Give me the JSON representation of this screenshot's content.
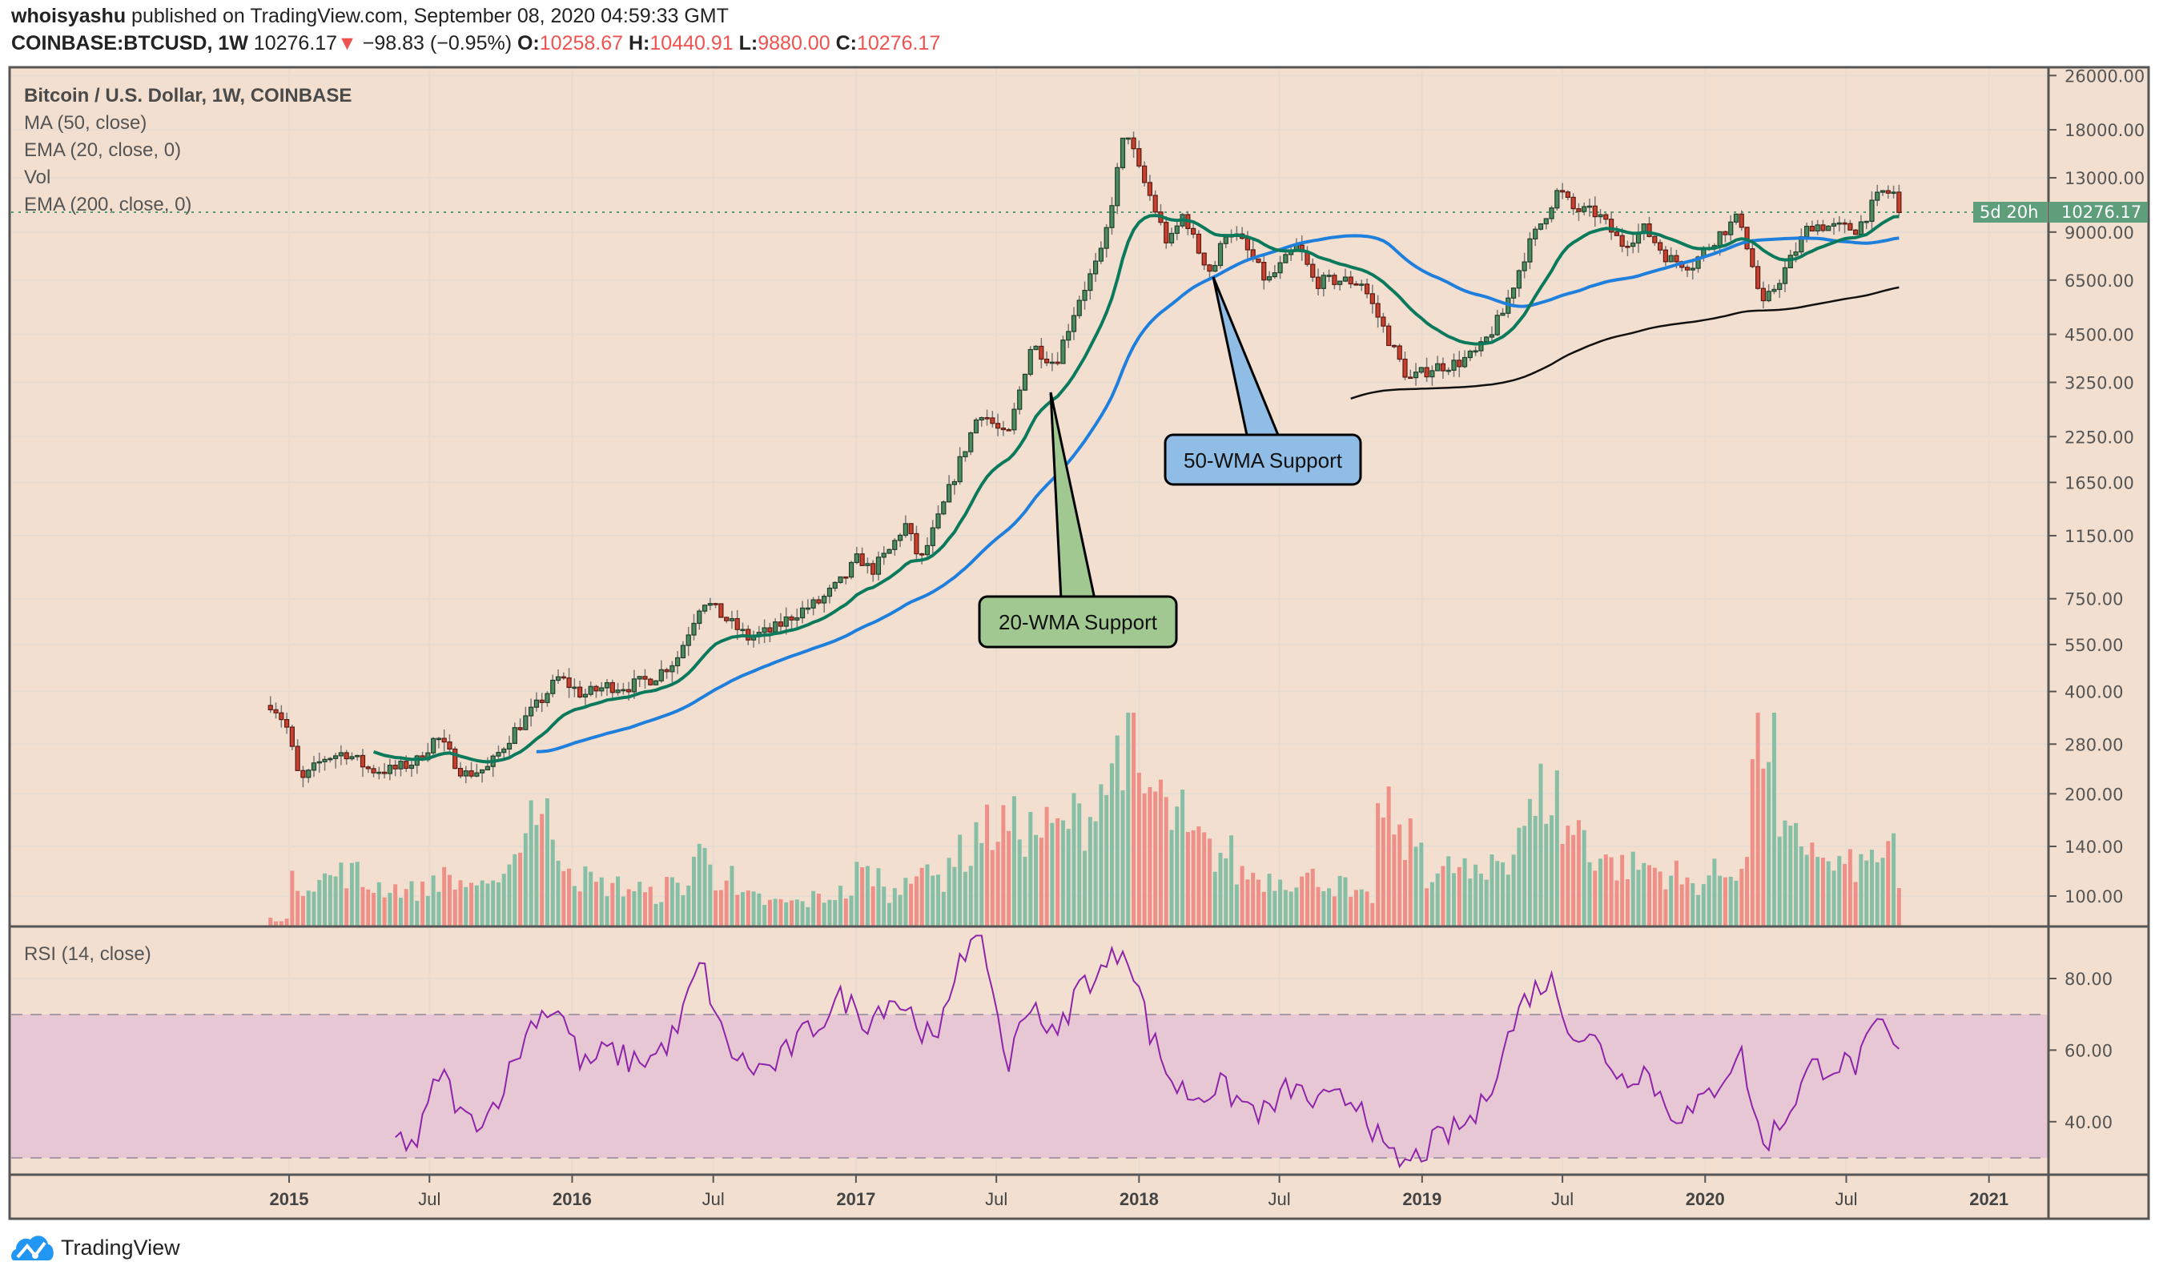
{
  "header": {
    "author": "whoisyashu",
    "published": "published on TradingView.com, September 08, 2020 04:59:33 GMT",
    "symbol": "COINBASE:BTCUSD, 1W",
    "last": "10276.17",
    "direction_icon": "down-triangle",
    "change": "−98.83 (−0.95%)",
    "o_label": "O:",
    "o": "10258.67",
    "h_label": "H:",
    "h": "10440.91",
    "l_label": "L:",
    "l": "9880.00",
    "c_label": "C:",
    "c": "10276.17"
  },
  "legend": {
    "title": "Bitcoin / U.S. Dollar, 1W, COINBASE",
    "ma50": "MA (50, close)",
    "ema20": "EMA (20, close, 0)",
    "vol": "Vol",
    "ema200": "EMA (200, close, 0)",
    "rsi": "RSI (14, close)"
  },
  "annotations": {
    "wma50": "50-WMA Support",
    "wma20": "20-WMA Support"
  },
  "price_label": {
    "value": "10276.17",
    "countdown": "5d 20h"
  },
  "footer": {
    "brand": "TradingView"
  },
  "colors": {
    "background": "#f2dfcf",
    "up": "#4c8a60",
    "down": "#c8402e",
    "ema20": "#0b7a5c",
    "ma50": "#1f7fdc",
    "ema200": "#111111",
    "rsi": "#8e24aa",
    "rsi_band": "#e6c7d3",
    "vol_up": "#86bfa5",
    "vol_down": "#ee9088",
    "wma50_box": "#8fbde6",
    "wma20_box": "#a0c890"
  },
  "chart_data": {
    "type": "candlestick",
    "interval": "1W",
    "y_scale": "log",
    "grid": true,
    "price_ticks": [
      "26000.00",
      "18000.00",
      "13000.00",
      "9000.00",
      "6500.00",
      "4500.00",
      "3250.00",
      "2250.00",
      "1650.00",
      "1150.00",
      "750.00",
      "550.00",
      "400.00",
      "280.00",
      "200.00",
      "140.00",
      "100.00"
    ],
    "time_ticks": [
      "2015",
      "Jul",
      "2016",
      "Jul",
      "2017",
      "Jul",
      "2018",
      "Jul",
      "2019",
      "Jul",
      "2020",
      "Jul",
      "2021"
    ],
    "rsi_ticks": [
      "80.00",
      "60.00",
      "40.00"
    ],
    "rsi_bands": [
      70,
      30
    ],
    "close_anchors": [
      [
        "2014-12-10",
        370
      ],
      [
        "2014-12-28",
        320
      ],
      [
        "2015-01-15",
        215
      ],
      [
        "2015-02-15",
        255
      ],
      [
        "2015-03-15",
        265
      ],
      [
        "2015-04-15",
        235
      ],
      [
        "2015-05-15",
        235
      ],
      [
        "2015-06-15",
        250
      ],
      [
        "2015-07-10",
        295
      ],
      [
        "2015-08-15",
        228
      ],
      [
        "2015-09-15",
        238
      ],
      [
        "2015-10-15",
        300
      ],
      [
        "2015-11-15",
        360
      ],
      [
        "2015-12-15",
        440
      ],
      [
        "2016-01-15",
        390
      ],
      [
        "2016-02-15",
        415
      ],
      [
        "2016-03-15",
        415
      ],
      [
        "2016-04-15",
        440
      ],
      [
        "2016-05-15",
        500
      ],
      [
        "2016-06-17",
        750
      ],
      [
        "2016-07-15",
        660
      ],
      [
        "2016-08-15",
        575
      ],
      [
        "2016-09-15",
        605
      ],
      [
        "2016-10-15",
        680
      ],
      [
        "2016-11-15",
        735
      ],
      [
        "2016-12-15",
        850
      ],
      [
        "2017-01-05",
        1000
      ],
      [
        "2017-01-20",
        900
      ],
      [
        "2017-02-15",
        1050
      ],
      [
        "2017-03-05",
        1250
      ],
      [
        "2017-03-25",
        960
      ],
      [
        "2017-04-15",
        1250
      ],
      [
        "2017-05-15",
        1900
      ],
      [
        "2017-06-10",
        2700
      ],
      [
        "2017-07-15",
        2200
      ],
      [
        "2017-08-15",
        4200
      ],
      [
        "2017-09-15",
        3700
      ],
      [
        "2017-10-15",
        5700
      ],
      [
        "2017-11-15",
        7900
      ],
      [
        "2017-12-15",
        18500
      ],
      [
        "2017-12-31",
        13800
      ],
      [
        "2018-01-15",
        11500
      ],
      [
        "2018-02-08",
        8200
      ],
      [
        "2018-02-28",
        10300
      ],
      [
        "2018-03-15",
        8200
      ],
      [
        "2018-04-05",
        6800
      ],
      [
        "2018-04-25",
        9300
      ],
      [
        "2018-05-15",
        8300
      ],
      [
        "2018-06-15",
        6400
      ],
      [
        "2018-07-25",
        8200
      ],
      [
        "2018-08-15",
        6400
      ],
      [
        "2018-09-15",
        6500
      ],
      [
        "2018-10-15",
        6400
      ],
      [
        "2018-11-20",
        4300
      ],
      [
        "2018-12-15",
        3300
      ],
      [
        "2019-01-15",
        3600
      ],
      [
        "2019-02-15",
        3700
      ],
      [
        "2019-03-15",
        4000
      ],
      [
        "2019-04-15",
        5200
      ],
      [
        "2019-05-15",
        7900
      ],
      [
        "2019-06-26",
        12000
      ],
      [
        "2019-07-15",
        10500
      ],
      [
        "2019-08-15",
        10200
      ],
      [
        "2019-09-15",
        8300
      ],
      [
        "2019-10-15",
        9200
      ],
      [
        "2019-11-15",
        7500
      ],
      [
        "2019-12-15",
        7200
      ],
      [
        "2020-01-15",
        8700
      ],
      [
        "2020-02-15",
        10000
      ],
      [
        "2020-03-15",
        5400
      ],
      [
        "2020-04-15",
        7100
      ],
      [
        "2020-05-15",
        9500
      ],
      [
        "2020-06-15",
        9300
      ],
      [
        "2020-07-15",
        9200
      ],
      [
        "2020-08-15",
        11800
      ],
      [
        "2020-08-31",
        11700
      ],
      [
        "2020-09-07",
        10276.17
      ]
    ],
    "volume_relative_monthly": {
      "start": "2014-12",
      "values": [
        0.03,
        0.18,
        0.2,
        0.22,
        0.17,
        0.16,
        0.15,
        0.2,
        0.18,
        0.15,
        0.3,
        0.5,
        0.3,
        0.2,
        0.17,
        0.16,
        0.13,
        0.17,
        0.3,
        0.2,
        0.12,
        0.1,
        0.1,
        0.12,
        0.14,
        0.22,
        0.14,
        0.25,
        0.2,
        0.3,
        0.4,
        0.42,
        0.4,
        0.4,
        0.45,
        0.6,
        0.8,
        0.55,
        0.45,
        0.35,
        0.3,
        0.22,
        0.2,
        0.2,
        0.2,
        0.17,
        0.12,
        0.45,
        0.35,
        0.22,
        0.24,
        0.2,
        0.3,
        0.45,
        0.55,
        0.4,
        0.3,
        0.25,
        0.25,
        0.22,
        0.18,
        0.22,
        0.25,
        0.8,
        0.35,
        0.35,
        0.25,
        0.25,
        0.3,
        0.15
      ]
    },
    "rsi_monthly": {
      "start": "2015-05",
      "values": [
        35,
        34,
        55,
        40,
        42,
        55,
        70,
        72,
        55,
        60,
        57,
        58,
        65,
        85,
        62,
        55,
        55,
        62,
        68,
        75,
        68,
        75,
        70,
        60,
        88,
        90,
        55,
        75,
        62,
        78,
        82,
        90,
        65,
        50,
        47,
        50,
        45,
        42,
        50,
        45,
        46,
        46,
        30,
        28,
        34,
        38,
        42,
        60,
        75,
        80,
        65,
        62,
        52,
        55,
        43,
        42,
        50,
        60,
        33,
        42,
        55,
        56,
        56,
        68,
        54
      ]
    },
    "last_price": 10276.17
  }
}
